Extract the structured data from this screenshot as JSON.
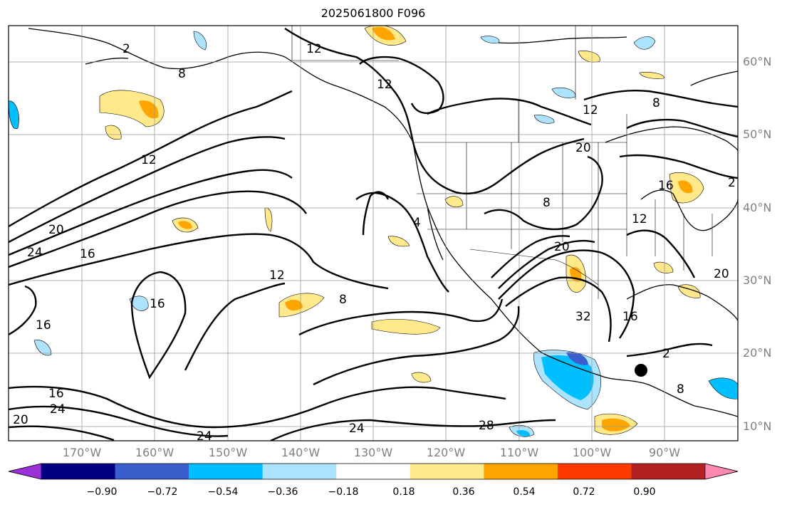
{
  "title": "2025061800 F096",
  "latitude_labels": [
    "60°N",
    "50°N",
    "40°N",
    "30°N",
    "20°N",
    "10°N"
  ],
  "longitude_labels": [
    "170°W",
    "160°W",
    "150°W",
    "140°W",
    "130°W",
    "120°W",
    "110°W",
    "100°W",
    "90°W"
  ],
  "contour_labels": [
    "2",
    "8",
    "12",
    "12",
    "12",
    "12",
    "8",
    "20",
    "24",
    "16",
    "16",
    "16",
    "12",
    "8",
    "20",
    "8",
    "20",
    "16",
    "2",
    "12",
    "4",
    "32",
    "16",
    "2",
    "20",
    "16",
    "24",
    "20",
    "24",
    "28",
    "24",
    "8"
  ],
  "colorbar": {
    "ticks": [
      "−0.90",
      "−0.72",
      "−0.54",
      "−0.36",
      "−0.18",
      "0.18",
      "0.36",
      "0.54",
      "0.72",
      "0.90"
    ],
    "colors": [
      "#9b30d6",
      "#000080",
      "#3a5fcd",
      "#00bfff",
      "#aee3ff",
      "#ffffff",
      "#ffe98a",
      "#ffa500",
      "#ff3a00",
      "#b22222",
      "#ff88b0"
    ]
  },
  "markers": [
    {
      "name": "storm-center",
      "lat": 17.5,
      "lon_w": 92
    }
  ]
}
